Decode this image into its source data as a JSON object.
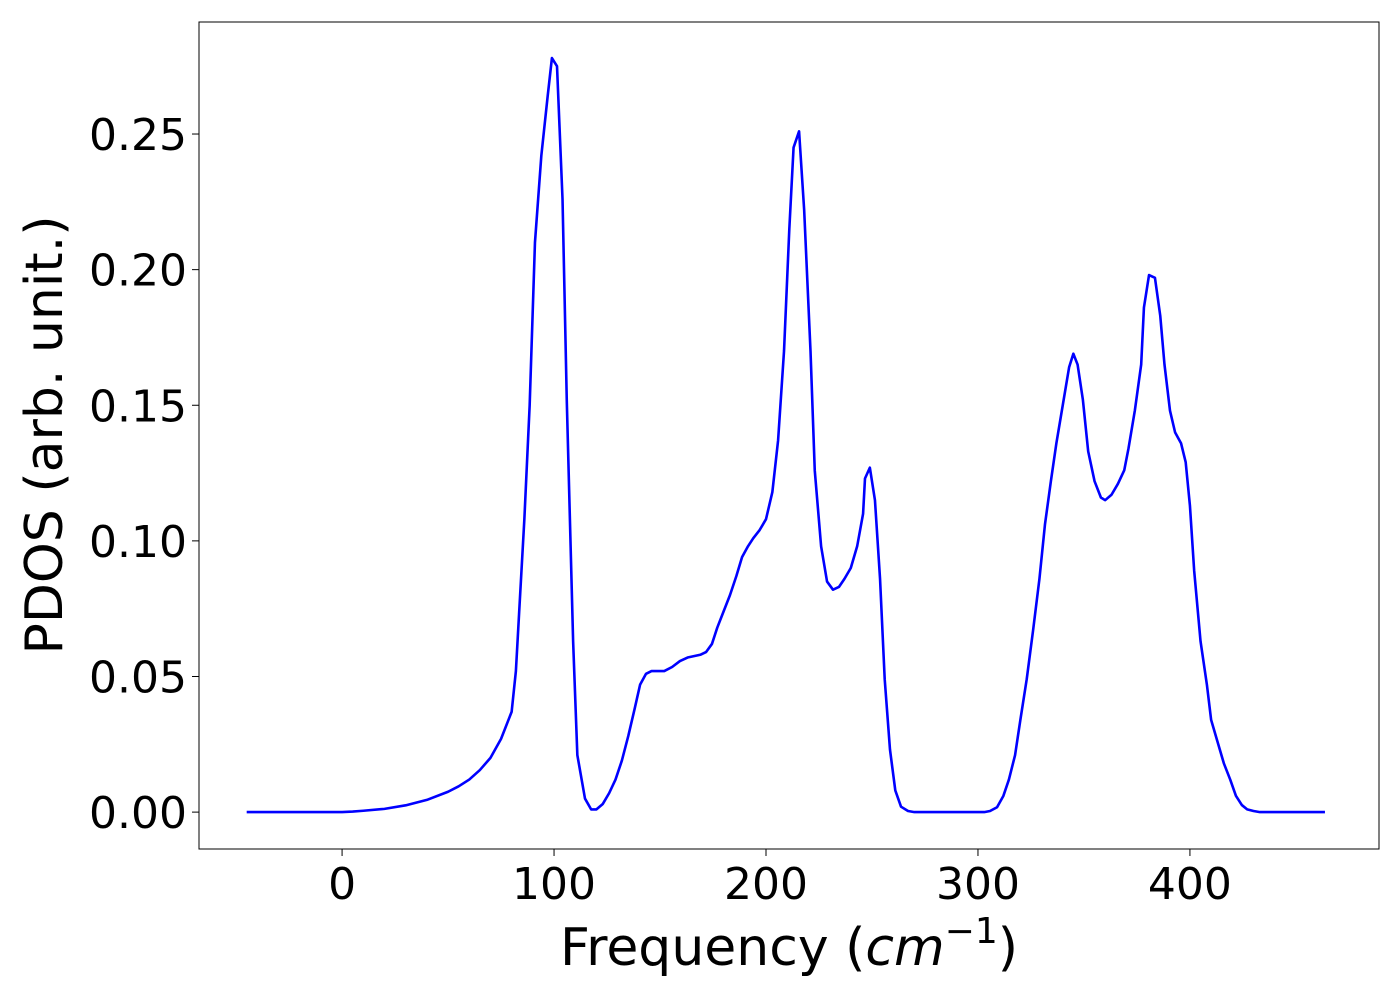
{
  "chart_data": {
    "type": "line",
    "xlabel_parts": [
      "Frequency (",
      "cm",
      "−1",
      ")"
    ],
    "ylabel": "PDOS (arb. unit.)",
    "color": "#0000ff",
    "x": [
      -45,
      -20,
      0,
      5,
      10,
      20,
      30,
      40,
      50,
      55,
      60,
      65,
      70,
      75,
      80,
      82,
      83.5,
      86,
      88.5,
      91,
      94,
      97,
      99,
      101.4,
      104,
      106,
      109,
      111,
      114.6,
      117.5,
      120,
      123,
      126,
      129,
      132,
      135,
      138,
      140.6,
      143.4,
      146,
      152,
      155.7,
      159.4,
      163,
      169,
      171.7,
      174.5,
      177,
      180,
      183,
      186,
      188.7,
      191.5,
      194,
      197,
      200,
      203,
      205.7,
      208.5,
      211,
      213,
      215.6,
      218,
      221,
      223,
      226,
      228.8,
      231.6,
      234.4,
      237,
      240,
      243,
      245.8,
      246.7,
      249,
      251.4,
      253.8,
      256,
      258.5,
      261,
      263.7,
      267,
      270,
      303,
      305.7,
      309,
      312,
      314.6,
      317.5,
      320,
      323,
      326,
      329,
      331.6,
      334.4,
      337,
      340,
      343,
      345,
      347,
      349.5,
      352,
      355,
      358,
      360,
      363,
      366,
      369,
      371,
      374,
      377,
      378.3,
      380.7,
      383.5,
      386,
      388,
      390.6,
      393,
      395.8,
      398,
      400,
      402,
      405,
      408,
      410,
      413,
      416,
      419,
      421.7,
      424.5,
      427,
      430,
      433,
      463.7
    ],
    "values": [
      0,
      0,
      0,
      0.0002,
      0.0005,
      0.0012,
      0.0025,
      0.0045,
      0.0075,
      0.0095,
      0.012,
      0.0155,
      0.02,
      0.027,
      0.037,
      0.052,
      0.073,
      0.108,
      0.15,
      0.21,
      0.242,
      0.264,
      0.278,
      0.275,
      0.226,
      0.152,
      0.063,
      0.021,
      0.005,
      0.001,
      0.001,
      0.003,
      0.007,
      0.012,
      0.019,
      0.028,
      0.038,
      0.047,
      0.051,
      0.052,
      0.052,
      0.0535,
      0.0557,
      0.057,
      0.058,
      0.059,
      0.062,
      0.068,
      0.074,
      0.08,
      0.087,
      0.094,
      0.098,
      0.101,
      0.104,
      0.108,
      0.118,
      0.137,
      0.17,
      0.215,
      0.245,
      0.251,
      0.222,
      0.17,
      0.126,
      0.098,
      0.085,
      0.082,
      0.083,
      0.086,
      0.09,
      0.098,
      0.11,
      0.123,
      0.127,
      0.115,
      0.086,
      0.049,
      0.023,
      0.008,
      0.002,
      0.0004,
      0,
      0,
      0.0004,
      0.0018,
      0.006,
      0.012,
      0.021,
      0.034,
      0.049,
      0.067,
      0.086,
      0.106,
      0.122,
      0.136,
      0.15,
      0.164,
      0.169,
      0.165,
      0.152,
      0.133,
      0.122,
      0.116,
      0.115,
      0.117,
      0.121,
      0.126,
      0.134,
      0.148,
      0.165,
      0.186,
      0.198,
      0.197,
      0.183,
      0.165,
      0.148,
      0.14,
      0.136,
      0.129,
      0.113,
      0.089,
      0.063,
      0.047,
      0.034,
      0.026,
      0.018,
      0.012,
      0.006,
      0.0026,
      0.001,
      0.0004,
      0,
      0
    ],
    "xlim": [
      -67.5,
      489.2
    ],
    "ylim": [
      -0.0136,
      0.2913
    ],
    "xticks": [
      0,
      100,
      200,
      300,
      400
    ],
    "yticks": [
      {
        "value": 0,
        "label": "0.00"
      },
      0.05,
      {
        "value": 0.1,
        "label": "0.10"
      },
      0.15,
      {
        "value": 0.2,
        "label": "0.20"
      },
      0.25
    ]
  }
}
